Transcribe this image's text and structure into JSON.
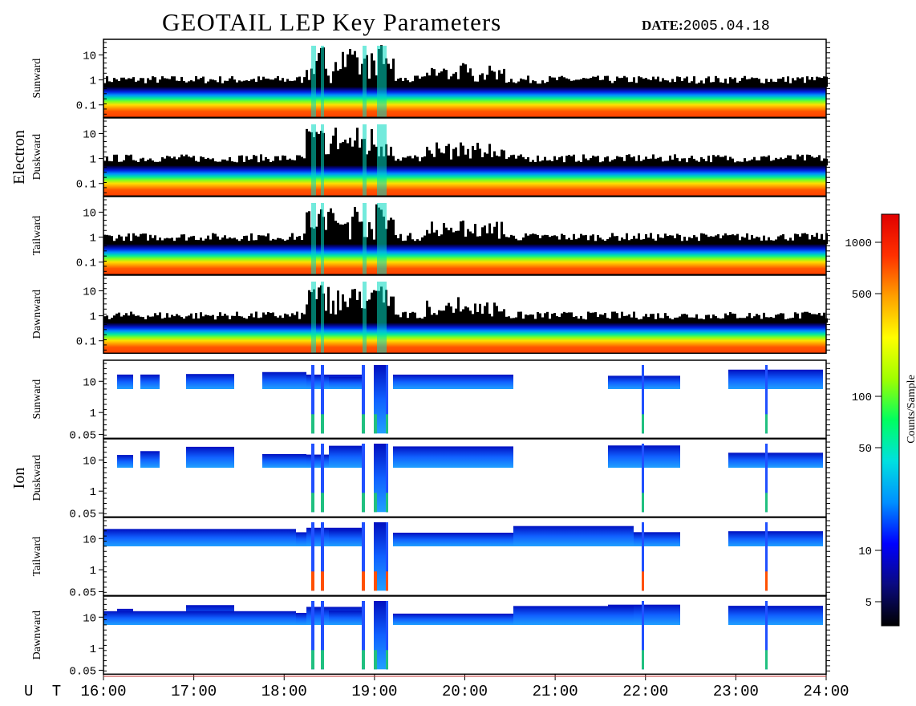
{
  "title": "GEOTAIL LEP Key Parameters",
  "date": {
    "label": "DATE:",
    "value": "2005.04.18"
  },
  "chart_data": {
    "type": "heatmap",
    "x_axis": {
      "label": "U T",
      "range": [
        "16:00",
        "24:00"
      ],
      "ticks": [
        "16:00",
        "17:00",
        "18:00",
        "19:00",
        "20:00",
        "21:00",
        "22:00",
        "23:00",
        "24:00"
      ]
    },
    "groups": [
      {
        "name": "Electron",
        "y_ticks": [
          "10",
          "1",
          "0.1"
        ],
        "panels": [
          "Sunward",
          "Duskward",
          "Tailward",
          "Dawnward"
        ]
      },
      {
        "name": "Ion",
        "y_ticks": [
          "10",
          "1",
          "0.05"
        ],
        "panels": [
          "Sunward",
          "Duskward",
          "Tailward",
          "Dawnward"
        ]
      }
    ],
    "colorbar": {
      "label": "Counts/Sample",
      "scale": "log",
      "ticks": [
        "1000",
        "500",
        "100",
        "50",
        "10",
        "5"
      ],
      "colors": [
        "#000000",
        "#0a0a80",
        "#0000ff",
        "#0090ff",
        "#00e0e0",
        "#00ff60",
        "#a0ff00",
        "#ffff00",
        "#ffa000",
        "#ff3000",
        "#e00000"
      ]
    }
  }
}
